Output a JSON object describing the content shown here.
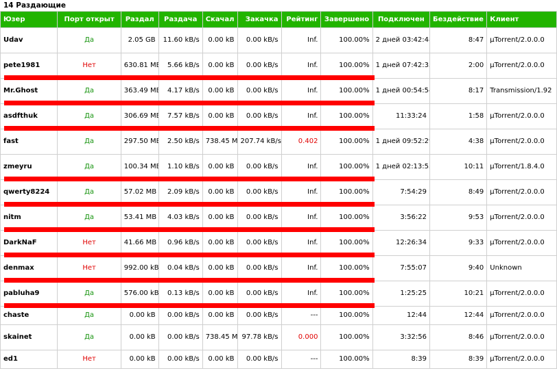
{
  "header": {
    "title": "14 Раздающие"
  },
  "table": {
    "columns": [
      "Юзер",
      "Порт открыт",
      "Раздал",
      "Раздача",
      "Скачал",
      "Закачка",
      "Рейтинг",
      "Завершено",
      "Подключен",
      "Бездействие",
      "Клиент"
    ],
    "rows": [
      {
        "user": "Udav",
        "port": "Да",
        "port_open": true,
        "uploaded": "2.05 GB",
        "up_speed": "11.60 kB/s",
        "downloaded": "0.00 kB",
        "down_speed": "0.00 kB/s",
        "rating": "Inf.",
        "rating_red": false,
        "completed": "100.00%",
        "connected": "2 дней 03:42:48",
        "idle": "8:47",
        "client": "µTorrent/2.0.0.0",
        "redacted": false
      },
      {
        "user": "pete1981",
        "port": "Нет",
        "port_open": false,
        "uploaded": "630.81 MB",
        "up_speed": "5.66 kB/s",
        "downloaded": "0.00 kB",
        "down_speed": "0.00 kB/s",
        "rating": "Inf.",
        "rating_red": false,
        "completed": "100.00%",
        "connected": "1 дней 07:42:35",
        "idle": "2:00",
        "client": "µTorrent/2.0.0.0",
        "redacted": true
      },
      {
        "user": "Mr.Ghost",
        "port": "Да",
        "port_open": true,
        "uploaded": "363.49 MB",
        "up_speed": "4.17 kB/s",
        "downloaded": "0.00 kB",
        "down_speed": "0.00 kB/s",
        "rating": "Inf.",
        "rating_red": false,
        "completed": "100.00%",
        "connected": "1 дней 00:54:54",
        "idle": "8:17",
        "client": "Transmission/1.92",
        "redacted": true
      },
      {
        "user": "asdfthuk",
        "port": "Да",
        "port_open": true,
        "uploaded": "306.69 MB",
        "up_speed": "7.57 kB/s",
        "downloaded": "0.00 kB",
        "down_speed": "0.00 kB/s",
        "rating": "Inf.",
        "rating_red": false,
        "completed": "100.00%",
        "connected": "11:33:24",
        "idle": "1:58",
        "client": "µTorrent/2.0.0.0",
        "redacted": true
      },
      {
        "user": "fast",
        "port": "Да",
        "port_open": true,
        "uploaded": "297.50 MB",
        "up_speed": "2.50 kB/s",
        "downloaded": "738.45 MB",
        "down_speed": "207.74 kB/s",
        "rating": "0.402",
        "rating_red": true,
        "completed": "100.00%",
        "connected": "1 дней 09:52:29",
        "idle": "4:38",
        "client": "µTorrent/2.0.0.0",
        "redacted": false
      },
      {
        "user": "zmeyru",
        "port": "Да",
        "port_open": true,
        "uploaded": "100.34 MB",
        "up_speed": "1.10 kB/s",
        "downloaded": "0.00 kB",
        "down_speed": "0.00 kB/s",
        "rating": "Inf.",
        "rating_red": false,
        "completed": "100.00%",
        "connected": "1 дней 02:13:53",
        "idle": "10:11",
        "client": "µTorrent/1.8.4.0",
        "redacted": true
      },
      {
        "user": "qwerty8224",
        "port": "Да",
        "port_open": true,
        "uploaded": "57.02 MB",
        "up_speed": "2.09 kB/s",
        "downloaded": "0.00 kB",
        "down_speed": "0.00 kB/s",
        "rating": "Inf.",
        "rating_red": false,
        "completed": "100.00%",
        "connected": "7:54:29",
        "idle": "8:49",
        "client": "µTorrent/2.0.0.0",
        "redacted": true
      },
      {
        "user": "nitm",
        "port": "Да",
        "port_open": true,
        "uploaded": "53.41 MB",
        "up_speed": "4.03 kB/s",
        "downloaded": "0.00 kB",
        "down_speed": "0.00 kB/s",
        "rating": "Inf.",
        "rating_red": false,
        "completed": "100.00%",
        "connected": "3:56:22",
        "idle": "9:53",
        "client": "µTorrent/2.0.0.0",
        "redacted": true
      },
      {
        "user": "DarkNaF",
        "port": "Нет",
        "port_open": false,
        "uploaded": "41.66 MB",
        "up_speed": "0.96 kB/s",
        "downloaded": "0.00 kB",
        "down_speed": "0.00 kB/s",
        "rating": "Inf.",
        "rating_red": false,
        "completed": "100.00%",
        "connected": "12:26:34",
        "idle": "9:33",
        "client": "µTorrent/2.0.0.0",
        "redacted": true
      },
      {
        "user": "denmax",
        "port": "Нет",
        "port_open": false,
        "uploaded": "992.00 kB",
        "up_speed": "0.04 kB/s",
        "downloaded": "0.00 kB",
        "down_speed": "0.00 kB/s",
        "rating": "Inf.",
        "rating_red": false,
        "completed": "100.00%",
        "connected": "7:55:07",
        "idle": "9:40",
        "client": "Unknown",
        "redacted": true
      },
      {
        "user": "pabluha9",
        "port": "Да",
        "port_open": true,
        "uploaded": "576.00 kB",
        "up_speed": "0.13 kB/s",
        "downloaded": "0.00 kB",
        "down_speed": "0.00 kB/s",
        "rating": "Inf.",
        "rating_red": false,
        "completed": "100.00%",
        "connected": "1:25:25",
        "idle": "10:21",
        "client": "µTorrent/2.0.0.0",
        "redacted": true
      },
      {
        "user": "chaste",
        "port": "Да",
        "port_open": true,
        "uploaded": "0.00 kB",
        "up_speed": "0.00 kB/s",
        "downloaded": "0.00 kB",
        "down_speed": "0.00 kB/s",
        "rating": "---",
        "rating_red": false,
        "completed": "100.00%",
        "connected": "12:44",
        "idle": "12:44",
        "client": "µTorrent/2.0.0.0",
        "redacted": false
      },
      {
        "user": "skainet",
        "port": "Да",
        "port_open": true,
        "uploaded": "0.00 kB",
        "up_speed": "0.00 kB/s",
        "downloaded": "738.45 MB",
        "down_speed": "97.78 kB/s",
        "rating": "0.000",
        "rating_red": true,
        "completed": "100.00%",
        "connected": "3:32:56",
        "idle": "8:46",
        "client": "µTorrent/2.0.0.0",
        "redacted": false
      },
      {
        "user": "ed1",
        "port": "Нет",
        "port_open": false,
        "uploaded": "0.00 kB",
        "up_speed": "0.00 kB/s",
        "downloaded": "0.00 kB",
        "down_speed": "0.00 kB/s",
        "rating": "---",
        "rating_red": false,
        "completed": "100.00%",
        "connected": "8:39",
        "idle": "8:39",
        "client": "µTorrent/2.0.0.0",
        "redacted": false
      }
    ]
  },
  "colors": {
    "header_bg": "#22b400",
    "yes": "#17940f",
    "no": "#e00000",
    "redaction": "#ff0000"
  }
}
